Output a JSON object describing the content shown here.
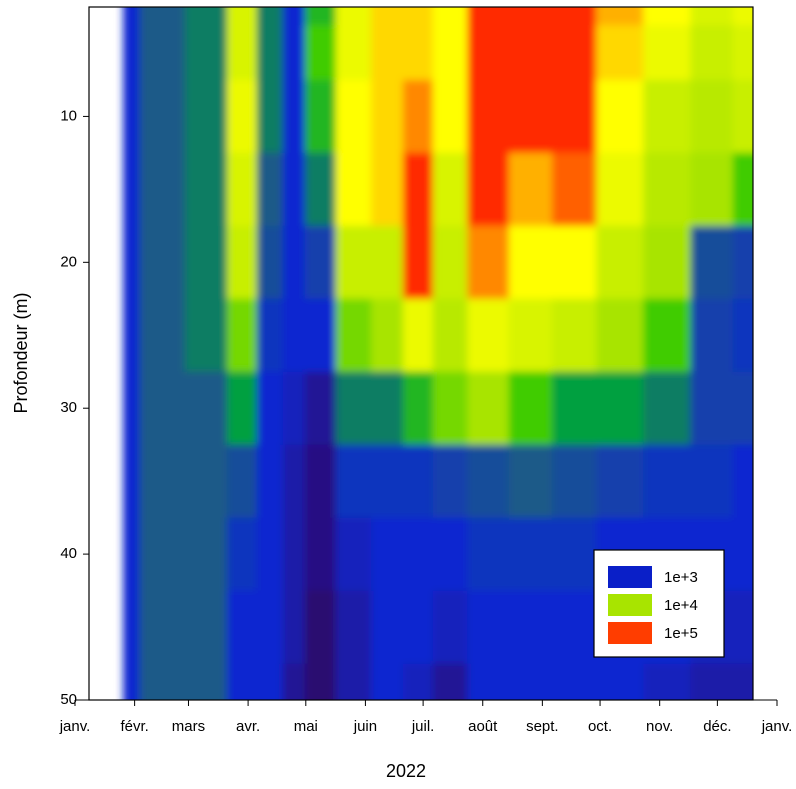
{
  "chart_data": {
    "type": "contour",
    "xlabel": "2022",
    "ylabel": "Profondeur (m)",
    "xlim": [
      0,
      365
    ],
    "xticks": [
      {
        "value": 0,
        "label": "janv."
      },
      {
        "value": 31,
        "label": "févr."
      },
      {
        "value": 59,
        "label": "mars"
      },
      {
        "value": 90,
        "label": "avr."
      },
      {
        "value": 120,
        "label": "mai"
      },
      {
        "value": 151,
        "label": "juin"
      },
      {
        "value": 181,
        "label": "juil."
      },
      {
        "value": 212,
        "label": "août"
      },
      {
        "value": 243,
        "label": "sept."
      },
      {
        "value": 273,
        "label": "oct."
      },
      {
        "value": 304,
        "label": "nov."
      },
      {
        "value": 334,
        "label": "déc."
      },
      {
        "value": 365,
        "label": "janv."
      }
    ],
    "ylim": [
      2.5,
      50
    ],
    "yticks": [
      10,
      20,
      30,
      40,
      50
    ],
    "x": [
      25,
      42,
      72,
      86,
      103,
      113,
      126,
      145,
      163,
      178,
      194,
      214,
      237,
      259,
      283,
      308,
      332,
      352
    ],
    "y": [
      2.5,
      5,
      10,
      15,
      20,
      25,
      30,
      35,
      40,
      45,
      50
    ],
    "z": [
      [
        3.0,
        3.0,
        3.0,
        3.0,
        3.0,
        3.0,
        3.0,
        3.0,
        3.0,
        3.0,
        3.0
      ],
      [
        3.4,
        3.4,
        3.4,
        3.4,
        3.4,
        3.4,
        3.4,
        3.4,
        3.4,
        3.4,
        3.4
      ],
      [
        3.5,
        3.5,
        3.5,
        3.5,
        3.5,
        3.5,
        3.4,
        3.4,
        3.4,
        3.4,
        3.4
      ],
      [
        4.3,
        4.3,
        4.4,
        4.3,
        4.2,
        3.9,
        3.6,
        3.3,
        3.1,
        3.0,
        3.0
      ],
      [
        3.5,
        3.5,
        3.5,
        3.4,
        3.3,
        3.1,
        3.0,
        3.0,
        3.0,
        3.0,
        3.0
      ],
      [
        3.0,
        3.0,
        3.0,
        3.0,
        3.0,
        3.0,
        2.9,
        2.8,
        2.8,
        2.8,
        2.7
      ],
      [
        3.7,
        3.8,
        3.7,
        3.5,
        3.2,
        3.0,
        2.7,
        2.6,
        2.6,
        2.5,
        2.5
      ],
      [
        4.4,
        4.4,
        4.5,
        4.5,
        4.2,
        3.9,
        3.5,
        3.1,
        2.9,
        2.8,
        2.8
      ],
      [
        4.6,
        4.6,
        4.6,
        4.6,
        4.2,
        4.0,
        3.5,
        3.1,
        3.0,
        3.0,
        3.0
      ],
      [
        4.6,
        4.6,
        4.8,
        5.0,
        5.0,
        4.4,
        3.7,
        3.1,
        3.0,
        3.0,
        2.9
      ],
      [
        4.5,
        4.5,
        4.5,
        4.3,
        4.2,
        4.1,
        3.9,
        3.2,
        3.0,
        2.9,
        2.7
      ],
      [
        5.0,
        5.0,
        5.0,
        5.0,
        4.8,
        4.4,
        4.0,
        3.3,
        3.1,
        3.0,
        3.0
      ],
      [
        5.0,
        5.0,
        5.0,
        4.7,
        4.5,
        4.3,
        3.8,
        3.4,
        3.1,
        3.0,
        3.0
      ],
      [
        5.0,
        5.0,
        5.0,
        4.9,
        4.5,
        4.2,
        3.6,
        3.3,
        3.1,
        3.0,
        3.0
      ],
      [
        4.7,
        4.6,
        4.5,
        4.4,
        4.2,
        4.0,
        3.6,
        3.2,
        3.0,
        3.0,
        3.0
      ],
      [
        4.5,
        4.4,
        4.2,
        4.1,
        4.0,
        3.8,
        3.5,
        3.1,
        3.0,
        3.0,
        2.9
      ],
      [
        4.3,
        4.2,
        4.1,
        4.0,
        3.3,
        3.2,
        3.2,
        3.1,
        3.0,
        2.9,
        2.8
      ],
      [
        4.4,
        4.3,
        4.2,
        3.8,
        3.2,
        3.1,
        3.2,
        3.0,
        3.0,
        2.9,
        2.8
      ]
    ],
    "colormap": [
      [
        2.5,
        "#2b0c70"
      ],
      [
        2.8,
        "#1a1aa8"
      ],
      [
        3.0,
        "#0a28d0"
      ],
      [
        3.4,
        "#1a5a88"
      ],
      [
        3.6,
        "#00a040"
      ],
      [
        3.8,
        "#40cc00"
      ],
      [
        4.0,
        "#a8e400"
      ],
      [
        4.3,
        "#d8f400"
      ],
      [
        4.5,
        "#ffff00"
      ],
      [
        4.7,
        "#ffb000"
      ],
      [
        4.9,
        "#ff6000"
      ],
      [
        5.0,
        "#ff2a00"
      ]
    ],
    "legend": [
      {
        "label": "1e+3",
        "color": "#0a1fc8"
      },
      {
        "label": "1e+4",
        "color": "#a8e400"
      },
      {
        "label": "1e+5",
        "color": "#ff3d00"
      }
    ]
  }
}
